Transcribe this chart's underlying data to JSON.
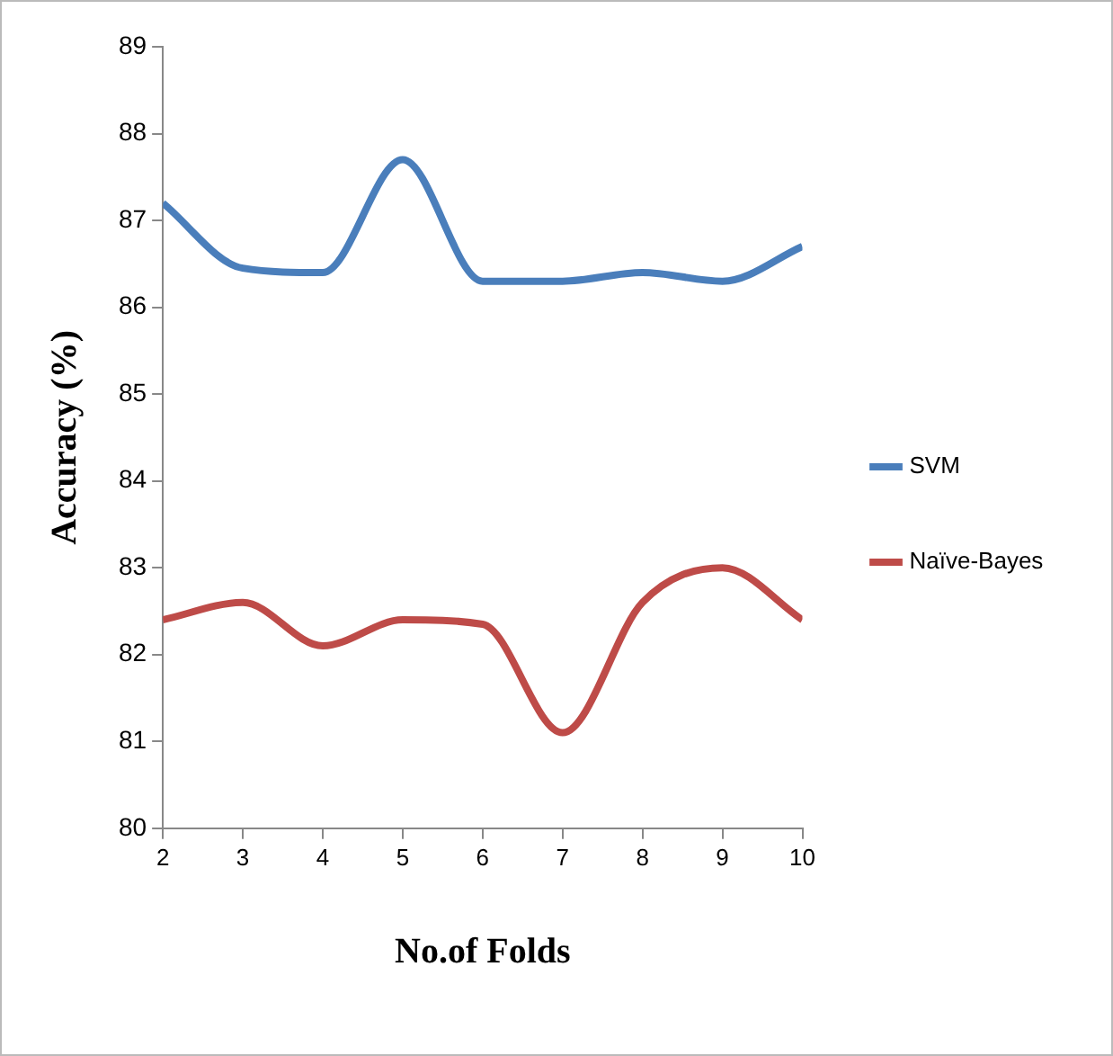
{
  "chart_data": {
    "type": "line",
    "xlabel": "No.of Folds",
    "ylabel": "Accuracy (%)",
    "x": [
      2,
      3,
      4,
      5,
      6,
      7,
      8,
      9,
      10
    ],
    "series": [
      {
        "name": "SVM",
        "color": "#4a7ebb",
        "values": [
          87.2,
          86.45,
          86.4,
          87.7,
          86.3,
          86.3,
          86.4,
          86.3,
          86.7
        ]
      },
      {
        "name": "Naïve-Bayes",
        "color": "#be4b48",
        "values": [
          82.4,
          82.6,
          82.1,
          82.4,
          82.35,
          81.1,
          82.6,
          83.0,
          82.4
        ]
      }
    ],
    "xlim": [
      2,
      10
    ],
    "xticks": [
      2,
      3,
      4,
      5,
      6,
      7,
      8,
      9,
      10
    ],
    "ylim": [
      80,
      89
    ],
    "yticks": [
      80,
      81,
      82,
      83,
      84,
      85,
      86,
      87,
      88,
      89
    ],
    "grid": false,
    "legend": "right",
    "marker": "none",
    "line_style": "solid"
  }
}
